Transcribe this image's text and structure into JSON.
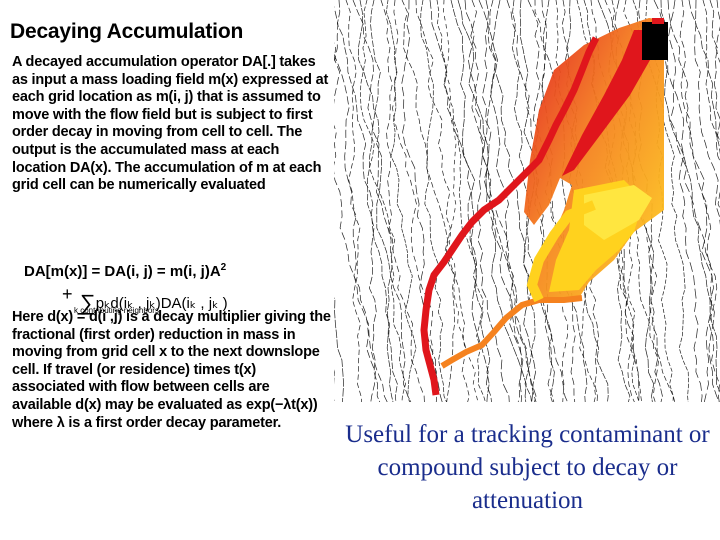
{
  "title": "Decaying Accumulation",
  "paragraph1": "A decayed accumulation operator DA[.] takes as input a mass loading field m(x) expressed at each grid location as m(i, j) that is assumed to move with the flow field but is subject to first order decay in moving from cell to cell.  The output is the accumulated mass at each location DA(x). The accumulation of m at each grid cell can be numerically evaluated",
  "equation": {
    "line1": "DA[m(x)] = DA(i, j) = m(i, j)A",
    "line1_sup": "2",
    "plus": "+",
    "line2": "pₖd(iₖ , jₖ)DA(iₖ , jₖ )",
    "sum_label": "k contributing neighbors"
  },
  "paragraph2": "Here d(x) = d(i ,j) is a decay multiplier giving the fractional (first order) reduction in mass in moving from grid cell x to the next downslope cell.  If travel (or residence) times t(x) associated with flow between cells are available d(x) may be evaluated as exp(−λt(x))  where λ is a first order decay parameter.",
  "caption": "Useful for a tracking contaminant or compound subject to decay or attenuation",
  "colors": {
    "red": "#e0161c",
    "orange": "#f5821f",
    "yellow": "#ffd21e",
    "light_yellow": "#ffe640",
    "caption_blue": "#1a2d8c"
  }
}
